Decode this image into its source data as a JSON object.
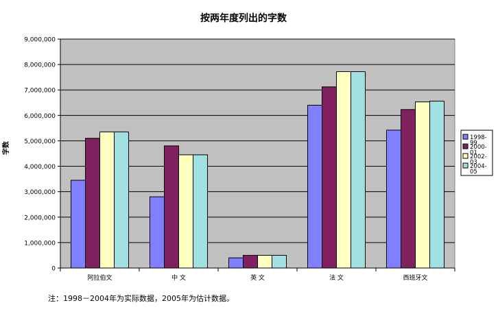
{
  "chart_data": {
    "type": "bar",
    "title": "按两年度列出的字数",
    "xlabel": "",
    "ylabel": "字数",
    "categories": [
      "阿拉伯文",
      "中 文",
      "英 文",
      "法 文",
      "西班牙文"
    ],
    "series": [
      {
        "name": "1998-99",
        "color": "#8080ff",
        "values": [
          3450000,
          2800000,
          400000,
          6400000,
          5420000
        ]
      },
      {
        "name": "2000-01",
        "color": "#802060",
        "values": [
          5100000,
          4800000,
          500000,
          7120000,
          6230000
        ]
      },
      {
        "name": "2002-03",
        "color": "#ffffc0",
        "values": [
          5350000,
          4450000,
          500000,
          7720000,
          6530000
        ]
      },
      {
        "name": "2004-05",
        "color": "#a0e0e0",
        "values": [
          5350000,
          4450000,
          500000,
          7720000,
          6560000
        ]
      }
    ],
    "ylim": [
      0,
      9000000
    ],
    "yticks": [
      0,
      1000000,
      2000000,
      3000000,
      4000000,
      5000000,
      6000000,
      7000000,
      8000000,
      9000000
    ],
    "ytick_labels": [
      "0",
      "1,000,000",
      "2,000,000",
      "3,000,000",
      "4,000,000",
      "5,000,000",
      "6,000,000",
      "7,000,000",
      "8,000,000",
      "9,000,000"
    ],
    "grid": true,
    "legend": "right",
    "plot_background": "#c0c0c0"
  },
  "footnote": "注：1998－2004年为实际数据，2005年为估计数据。"
}
